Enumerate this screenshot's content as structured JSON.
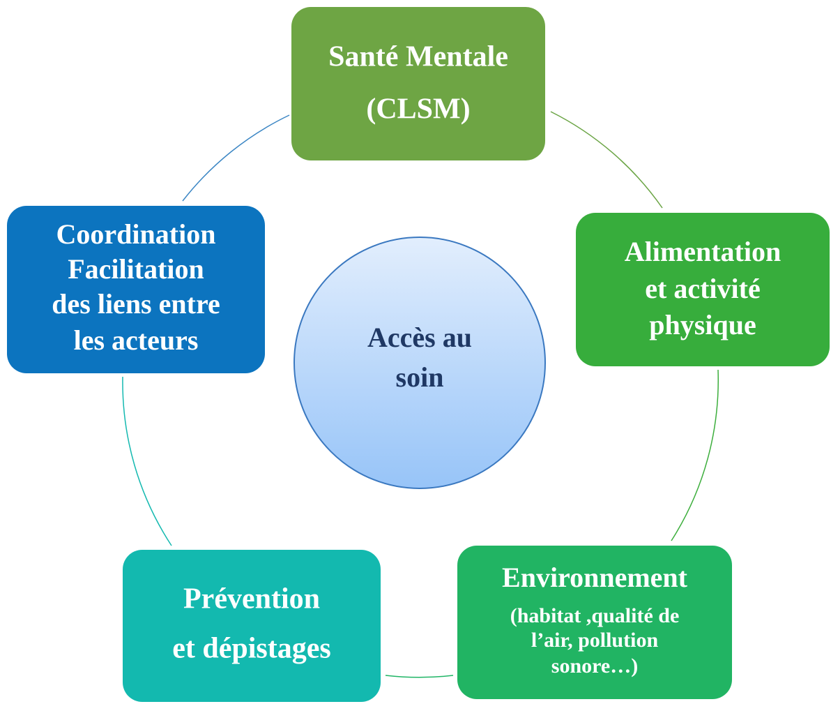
{
  "center": {
    "lines": [
      "Accès au",
      "soin"
    ]
  },
  "nodes": [
    {
      "lines": [
        "Santé Mentale",
        "(CLSM)"
      ]
    },
    {
      "lines": [
        "Alimentation",
        "et activité",
        "physique"
      ]
    },
    {
      "lines": [
        "Environnement",
        "(habitat ,qualité de",
        "l’air, pollution",
        "sonore…)"
      ]
    },
    {
      "lines": [
        "Prévention",
        "et dépistages"
      ]
    },
    {
      "lines": [
        "Coordination",
        "Facilitation",
        "des liens entre",
        "les acteurs"
      ]
    }
  ]
}
